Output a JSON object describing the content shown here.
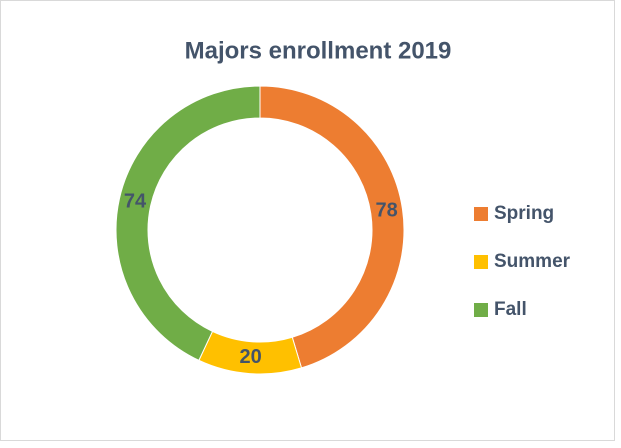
{
  "chart_data": {
    "type": "donut",
    "title": "Majors enrollment 2019",
    "categories": [
      "Spring",
      "Summer",
      "Fall"
    ],
    "values": [
      78,
      20,
      74
    ],
    "colors": [
      "#ed7d31",
      "#ffc000",
      "#70ad47"
    ],
    "legend": "right"
  }
}
